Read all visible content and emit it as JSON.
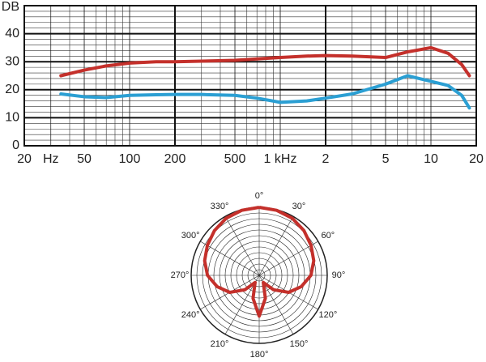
{
  "chart_data": [
    {
      "type": "line",
      "ylabel": "DB",
      "xscale": "log",
      "xlim": [
        20,
        20000
      ],
      "ylim": [
        0,
        50
      ],
      "xticks": [
        20,
        {
          "value": 30,
          "label": "Hz"
        },
        50,
        100,
        200,
        500,
        {
          "value": 1000,
          "label": "1 kHz"
        },
        {
          "value": 2000,
          "label": "2"
        },
        {
          "value": 5000,
          "label": "5"
        },
        {
          "value": 10000,
          "label": "10"
        },
        {
          "value": 20000,
          "label": "20"
        }
      ],
      "yticks": [
        0,
        10,
        20,
        30,
        40
      ],
      "grid": true,
      "x": [
        35,
        50,
        70,
        100,
        150,
        200,
        300,
        500,
        700,
        1000,
        1500,
        2000,
        3000,
        5000,
        7000,
        10000,
        13000,
        16000,
        18000
      ],
      "series": [
        {
          "color": "#c4302b",
          "values": [
            25,
            27,
            28.5,
            29.5,
            30,
            30,
            30.2,
            30.5,
            31,
            31.5,
            32,
            32.2,
            32,
            31.5,
            33.5,
            35,
            33,
            29,
            25
          ]
        },
        {
          "color": "#2b9fd3",
          "values": [
            18.5,
            17.5,
            17.2,
            18,
            18.2,
            18.3,
            18.3,
            18,
            17,
            15.5,
            16,
            17,
            18.5,
            22,
            25,
            23,
            21.5,
            18,
            13.5
          ]
        }
      ]
    },
    {
      "type": "polar",
      "color": "#c4302b",
      "rlim": [
        0,
        1
      ],
      "thetaticks": [
        {
          "value": 0,
          "label": "0°"
        },
        {
          "value": 30,
          "label": "30°"
        },
        {
          "value": 60,
          "label": "60°"
        },
        {
          "value": 90,
          "label": "90°"
        },
        {
          "value": 120,
          "label": "120°"
        },
        {
          "value": 150,
          "label": "150°"
        },
        {
          "value": 180,
          "label": "180°"
        },
        {
          "value": 210,
          "label": "210°"
        },
        {
          "value": 240,
          "label": "240°"
        },
        {
          "value": 270,
          "label": "270°"
        },
        {
          "value": 300,
          "label": "300°"
        },
        {
          "value": 330,
          "label": "330°"
        }
      ],
      "theta": [
        0,
        15,
        30,
        45,
        60,
        75,
        90,
        105,
        120,
        135,
        150,
        165,
        180,
        195,
        210,
        225,
        240,
        255,
        270,
        285,
        300,
        315,
        330,
        345,
        360
      ],
      "r": [
        1,
        0.99,
        0.97,
        0.93,
        0.88,
        0.83,
        0.76,
        0.64,
        0.5,
        0.3,
        0.12,
        0.35,
        0.6,
        0.35,
        0.12,
        0.3,
        0.5,
        0.64,
        0.76,
        0.83,
        0.88,
        0.93,
        0.97,
        0.99,
        1
      ]
    }
  ]
}
